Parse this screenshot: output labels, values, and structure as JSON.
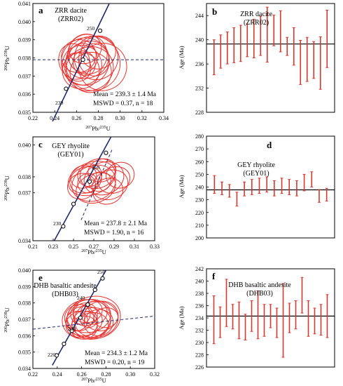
{
  "colors": {
    "ellipse": "#e8322f",
    "concordia": "#1e2a6e",
    "bar": "#d23a2f",
    "line": "#000000"
  },
  "panels": [
    {
      "letter": "a",
      "title1": "ZRR dacite",
      "title2": "(ZRR02)",
      "mean": "Mean = 239.3 ± 1.4 Ma",
      "mswd": "MSWD = 0.37, n = 18"
    },
    {
      "letter": "b",
      "title1": "ZRR dacite",
      "title2": "(ZRR02)"
    },
    {
      "letter": "c",
      "title1": "GEY rhyolite",
      "title2": "(GEY01)",
      "mean": "Mean = 237.8 ± 2.1 Ma",
      "mswd": "MSWD = 1.90, n = 16"
    },
    {
      "letter": "d",
      "title1": "GEY rhyolite",
      "title2": "(GEY01)"
    },
    {
      "letter": "e",
      "title1": "DHB basaltic andesite",
      "title2": "(DHB03)",
      "mean": "Mean = 234.3 ± 1.2 Ma",
      "mswd": "MSWD = 0.20, n = 19"
    },
    {
      "letter": "f",
      "title1": "DHB basaltic andesite",
      "title2": "(DHB03)"
    }
  ],
  "chart_data": [
    {
      "type": "scatter",
      "subtype": "concordia",
      "xlabel": "207Pb/235U",
      "ylabel": "206Pb/238U",
      "xlim": [
        0.22,
        0.34
      ],
      "ylim": [
        0.035,
        0.041
      ],
      "xticks": [
        "0.22",
        "0.24",
        "0.26",
        "0.28",
        "0.30",
        "0.32",
        "0.34"
      ],
      "yticks": [
        "0.035",
        "0.036",
        "0.037",
        "0.038",
        "0.039",
        "0.040",
        "0.041"
      ],
      "concordia_age_labels": [
        "230",
        "250"
      ],
      "concordia_markers": [
        [
          0.2504,
          0.0363
        ],
        [
          0.2659,
          0.0379
        ],
        [
          0.2816,
          0.0395
        ]
      ],
      "mean_ratio_line": 0.0379,
      "ellipses": [
        {
          "x": 0.268,
          "y": 0.0378,
          "rx": 0.022,
          "ry": 0.0013
        },
        {
          "x": 0.27,
          "y": 0.0379,
          "rx": 0.02,
          "ry": 0.001
        },
        {
          "x": 0.265,
          "y": 0.0376,
          "rx": 0.018,
          "ry": 0.0011
        },
        {
          "x": 0.275,
          "y": 0.0377,
          "rx": 0.025,
          "ry": 0.0015
        },
        {
          "x": 0.262,
          "y": 0.0381,
          "rx": 0.016,
          "ry": 0.0009
        },
        {
          "x": 0.272,
          "y": 0.0374,
          "rx": 0.022,
          "ry": 0.0012
        },
        {
          "x": 0.266,
          "y": 0.038,
          "rx": 0.013,
          "ry": 0.0008
        },
        {
          "x": 0.278,
          "y": 0.038,
          "rx": 0.02,
          "ry": 0.0012
        },
        {
          "x": 0.258,
          "y": 0.0378,
          "rx": 0.014,
          "ry": 0.001
        },
        {
          "x": 0.284,
          "y": 0.0375,
          "rx": 0.022,
          "ry": 0.0013
        },
        {
          "x": 0.264,
          "y": 0.0373,
          "rx": 0.017,
          "ry": 0.001
        },
        {
          "x": 0.27,
          "y": 0.0382,
          "rx": 0.018,
          "ry": 0.0011
        },
        {
          "x": 0.267,
          "y": 0.0377,
          "rx": 0.01,
          "ry": 0.0007
        },
        {
          "x": 0.276,
          "y": 0.0379,
          "rx": 0.014,
          "ry": 0.0009
        },
        {
          "x": 0.261,
          "y": 0.0375,
          "rx": 0.012,
          "ry": 0.0008
        },
        {
          "x": 0.28,
          "y": 0.0383,
          "rx": 0.016,
          "ry": 0.0009
        },
        {
          "x": 0.273,
          "y": 0.0372,
          "rx": 0.019,
          "ry": 0.0011
        },
        {
          "x": 0.268,
          "y": 0.0385,
          "rx": 0.015,
          "ry": 0.0008
        }
      ]
    },
    {
      "type": "bar",
      "subtype": "weighted-mean",
      "ylabel": "Age (Ma)",
      "ylim": [
        228,
        246
      ],
      "yticks": [
        "228",
        "232",
        "236",
        "240",
        "244"
      ],
      "mean_line": 239.3,
      "bars": [
        [
          234.2,
          240.0
        ],
        [
          235.3,
          240.8
        ],
        [
          236.0,
          241.3
        ],
        [
          236.2,
          242.0
        ],
        [
          236.4,
          242.4
        ],
        [
          237.2,
          242.6
        ],
        [
          237.0,
          243.4
        ],
        [
          237.4,
          243.9
        ],
        [
          236.3,
          245.4
        ],
        [
          239.0,
          244.1
        ],
        [
          238.0,
          244.8
        ],
        [
          237.4,
          240.4
        ],
        [
          235.8,
          242.0
        ],
        [
          232.6,
          239.9
        ],
        [
          233.1,
          240.4
        ],
        [
          233.6,
          239.7
        ],
        [
          231.8,
          240.5
        ],
        [
          235.4,
          244.9
        ]
      ]
    },
    {
      "type": "scatter",
      "subtype": "concordia",
      "xlabel": "207Pb/235U",
      "ylabel": "206Pb/238U",
      "xlim": [
        0.21,
        0.33
      ],
      "ylim": [
        0.034,
        0.0405
      ],
      "xticks": [
        "0.21",
        "0.23",
        "0.25",
        "0.27",
        "0.29",
        "0.31",
        "0.33"
      ],
      "yticks": [
        "0.034",
        "0.037",
        "0.038",
        "0.040"
      ],
      "concordia_age_labels": [
        "230",
        "250"
      ],
      "concordia_markers": [
        [
          0.2399,
          0.0349
        ],
        [
          0.25,
          0.0363
        ],
        [
          0.2659,
          0.0377
        ],
        [
          0.282,
          0.0395
        ]
      ],
      "ellipses": [
        {
          "x": 0.268,
          "y": 0.0379,
          "rx": 0.024,
          "ry": 0.001
        },
        {
          "x": 0.27,
          "y": 0.0376,
          "rx": 0.022,
          "ry": 0.0011
        },
        {
          "x": 0.262,
          "y": 0.0378,
          "rx": 0.016,
          "ry": 0.0008
        },
        {
          "x": 0.28,
          "y": 0.0379,
          "rx": 0.02,
          "ry": 0.001
        },
        {
          "x": 0.29,
          "y": 0.0378,
          "rx": 0.016,
          "ry": 0.0008
        },
        {
          "x": 0.274,
          "y": 0.0382,
          "rx": 0.018,
          "ry": 0.0009
        },
        {
          "x": 0.258,
          "y": 0.0374,
          "rx": 0.014,
          "ry": 0.0008
        },
        {
          "x": 0.266,
          "y": 0.0381,
          "rx": 0.012,
          "ry": 0.0007
        },
        {
          "x": 0.286,
          "y": 0.0375,
          "rx": 0.018,
          "ry": 0.0009
        },
        {
          "x": 0.272,
          "y": 0.0373,
          "rx": 0.02,
          "ry": 0.0009
        },
        {
          "x": 0.264,
          "y": 0.0376,
          "rx": 0.01,
          "ry": 0.0006
        },
        {
          "x": 0.296,
          "y": 0.0381,
          "rx": 0.014,
          "ry": 0.0008
        },
        {
          "x": 0.278,
          "y": 0.0384,
          "rx": 0.014,
          "ry": 0.0007
        },
        {
          "x": 0.26,
          "y": 0.038,
          "rx": 0.013,
          "ry": 0.0007
        },
        {
          "x": 0.284,
          "y": 0.0371,
          "rx": 0.015,
          "ry": 0.0008
        },
        {
          "x": 0.276,
          "y": 0.0377,
          "rx": 0.011,
          "ry": 0.0006
        }
      ]
    },
    {
      "type": "bar",
      "subtype": "weighted-mean",
      "ylabel": "Age (Ma)",
      "ylim": [
        200,
        280
      ],
      "yticks": [
        "200",
        "210",
        "220",
        "230",
        "240",
        "250",
        "260",
        "270",
        "280"
      ],
      "mean_line": 237.8,
      "bars": [
        [
          235,
          249
        ],
        [
          234,
          244
        ],
        [
          232,
          242
        ],
        [
          225,
          236
        ],
        [
          233,
          244
        ],
        [
          234,
          246
        ],
        [
          235,
          247
        ],
        [
          236,
          248
        ],
        [
          233,
          245
        ],
        [
          235,
          247
        ],
        [
          234,
          246
        ],
        [
          233,
          245
        ],
        [
          237,
          250
        ],
        [
          240,
          252
        ],
        [
          228,
          238
        ],
        [
          229,
          239
        ]
      ]
    },
    {
      "type": "scatter",
      "subtype": "concordia",
      "xlabel": "207Pb/235U",
      "ylabel": "206Pb/238U",
      "xlim": [
        0.22,
        0.32
      ],
      "ylim": [
        0.034,
        0.04
      ],
      "xticks": [
        "0.22",
        "0.24",
        "0.26",
        "0.28",
        "0.30",
        "0.32"
      ],
      "yticks": [
        "0.034",
        "0.035",
        "0.036",
        "0.037",
        "0.038",
        "0.039",
        "0.040"
      ],
      "concordia_age_labels": [
        "220",
        "230",
        "240",
        "250"
      ],
      "concordia_markers": [
        [
          0.2395,
          0.0348
        ],
        [
          0.2455,
          0.0355
        ],
        [
          0.252,
          0.0363
        ],
        [
          0.259,
          0.0371
        ],
        [
          0.265,
          0.0379
        ],
        [
          0.271,
          0.0388
        ],
        [
          0.2772,
          0.0395
        ]
      ],
      "ellipses": [
        {
          "x": 0.264,
          "y": 0.037,
          "rx": 0.02,
          "ry": 0.0012
        },
        {
          "x": 0.266,
          "y": 0.0372,
          "rx": 0.018,
          "ry": 0.001
        },
        {
          "x": 0.262,
          "y": 0.0369,
          "rx": 0.015,
          "ry": 0.0009
        },
        {
          "x": 0.27,
          "y": 0.0371,
          "rx": 0.022,
          "ry": 0.0013
        },
        {
          "x": 0.258,
          "y": 0.0371,
          "rx": 0.012,
          "ry": 0.0008
        },
        {
          "x": 0.268,
          "y": 0.0368,
          "rx": 0.016,
          "ry": 0.0009
        },
        {
          "x": 0.263,
          "y": 0.0373,
          "rx": 0.01,
          "ry": 0.0007
        },
        {
          "x": 0.272,
          "y": 0.037,
          "rx": 0.018,
          "ry": 0.0011
        },
        {
          "x": 0.26,
          "y": 0.0367,
          "rx": 0.013,
          "ry": 0.0008
        },
        {
          "x": 0.276,
          "y": 0.0372,
          "rx": 0.014,
          "ry": 0.0009
        },
        {
          "x": 0.265,
          "y": 0.0375,
          "rx": 0.012,
          "ry": 0.0007
        },
        {
          "x": 0.268,
          "y": 0.0366,
          "rx": 0.014,
          "ry": 0.0008
        },
        {
          "x": 0.256,
          "y": 0.0369,
          "rx": 0.009,
          "ry": 0.0006
        },
        {
          "x": 0.27,
          "y": 0.0374,
          "rx": 0.011,
          "ry": 0.0007
        },
        {
          "x": 0.262,
          "y": 0.0365,
          "rx": 0.011,
          "ry": 0.0007
        },
        {
          "x": 0.274,
          "y": 0.0368,
          "rx": 0.012,
          "ry": 0.0008
        },
        {
          "x": 0.266,
          "y": 0.037,
          "rx": 0.007,
          "ry": 0.0005
        },
        {
          "x": 0.28,
          "y": 0.0371,
          "rx": 0.01,
          "ry": 0.0006
        },
        {
          "x": 0.259,
          "y": 0.0373,
          "rx": 0.008,
          "ry": 0.0006
        }
      ]
    },
    {
      "type": "bar",
      "subtype": "weighted-mean",
      "ylabel": "Age (Ma)",
      "ylim": [
        226,
        242
      ],
      "yticks": [
        "226",
        "228",
        "230",
        "232",
        "234",
        "236",
        "238",
        "240",
        "242"
      ],
      "mean_line": 234.3,
      "bars": [
        [
          229.8,
          237.6
        ],
        [
          230.8,
          235.8
        ],
        [
          232.6,
          240.3
        ],
        [
          232.2,
          236.2
        ],
        [
          230.6,
          236.6
        ],
        [
          230.4,
          234.6
        ],
        [
          231.8,
          236.8
        ],
        [
          230.6,
          238.4
        ],
        [
          231.0,
          236.2
        ],
        [
          232.4,
          236.2
        ],
        [
          230.8,
          235.6
        ],
        [
          227.6,
          239.6
        ],
        [
          231.6,
          236.4
        ],
        [
          232.2,
          236.8
        ],
        [
          234.8,
          240.6
        ],
        [
          231.0,
          236.8
        ],
        [
          231.4,
          235.6
        ],
        [
          231.2,
          236.2
        ],
        [
          230.8,
          237.8
        ]
      ]
    }
  ]
}
